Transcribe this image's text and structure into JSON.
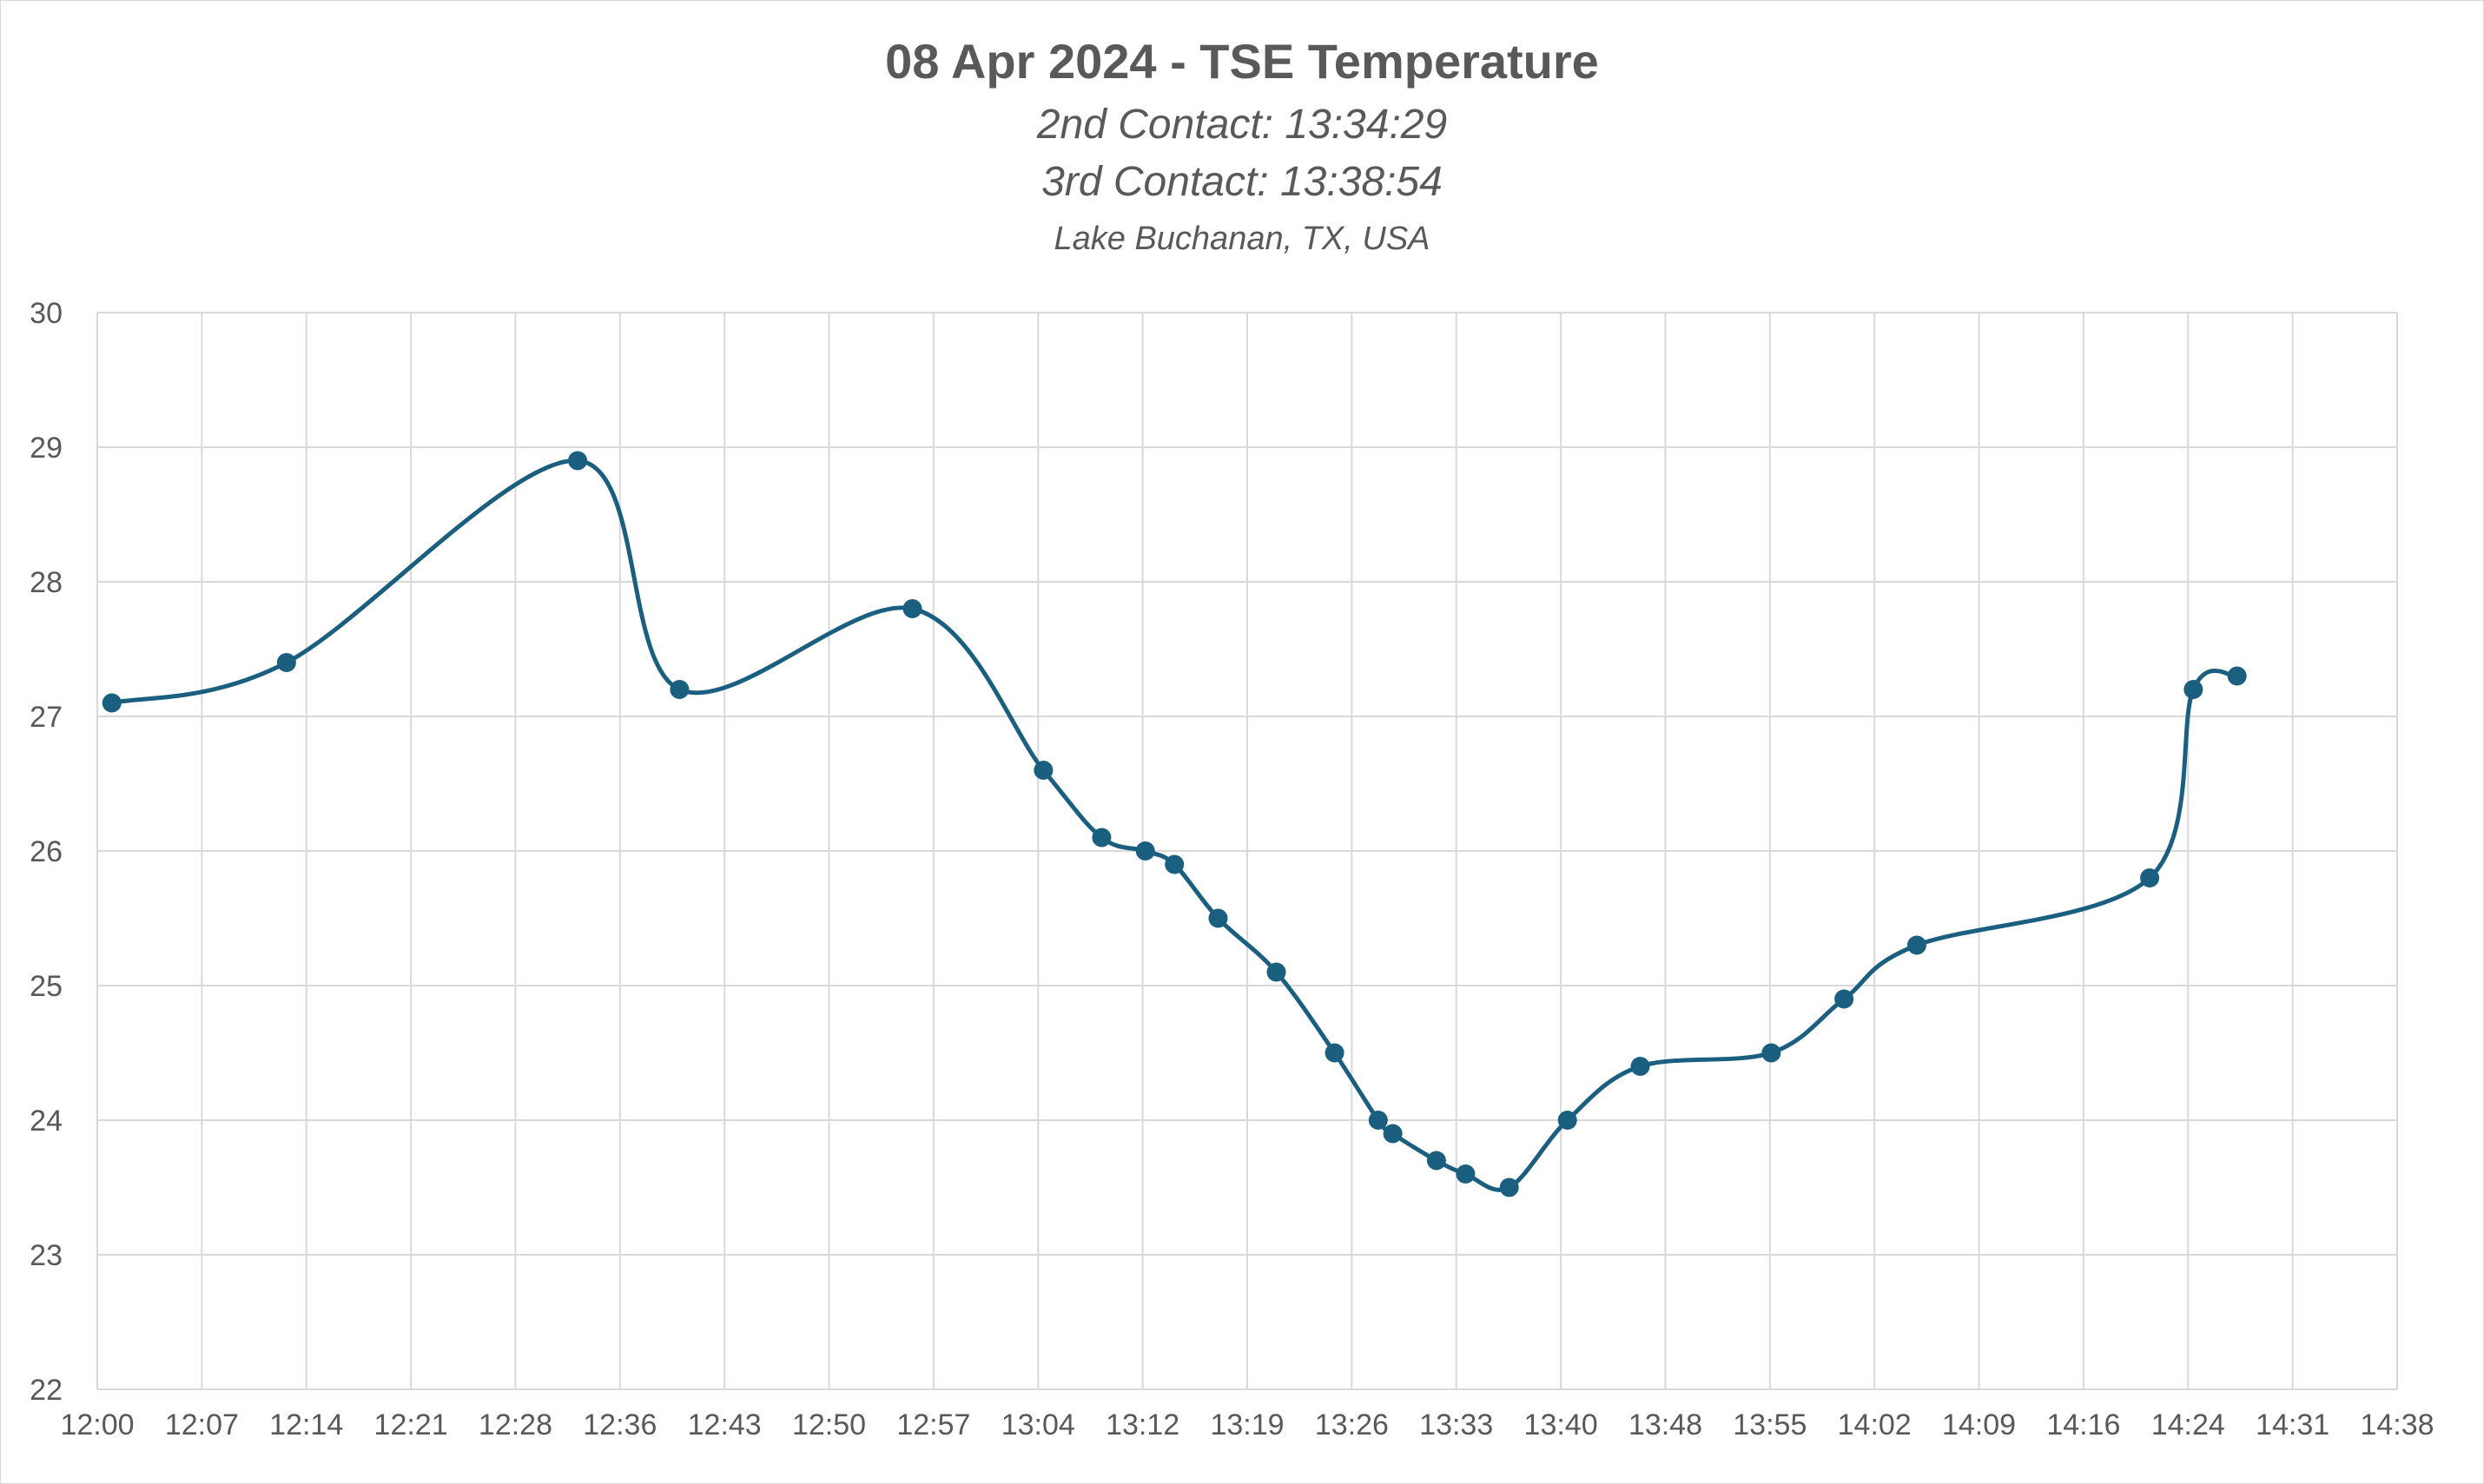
{
  "chart_data": {
    "type": "line",
    "title": "08 Apr 2024 - TSE Temperature",
    "subtitles": [
      "2nd Contact: 13:34:29",
      "3rd Contact: 13:38:54",
      "Lake Buchanan, TX, USA"
    ],
    "xlabel": "",
    "ylabel": "",
    "xlim": [
      "12:00",
      "14:38"
    ],
    "ylim": [
      22,
      30
    ],
    "x_ticks": [
      "12:00",
      "12:07",
      "12:14",
      "12:21",
      "12:28",
      "12:36",
      "12:43",
      "12:50",
      "12:57",
      "13:04",
      "13:12",
      "13:19",
      "13:26",
      "13:33",
      "13:40",
      "13:48",
      "13:55",
      "14:02",
      "14:09",
      "14:16",
      "14:24",
      "14:31",
      "14:38"
    ],
    "y_ticks": [
      22,
      23,
      24,
      25,
      26,
      27,
      28,
      29,
      30
    ],
    "grid": true,
    "legend": "none",
    "line_color": "#1a5f7f",
    "series": [
      {
        "x": [
          "12:01",
          "12:13",
          "12:33",
          "12:40",
          "12:56",
          "13:05",
          "13:09",
          "13:12",
          "13:14",
          "13:17",
          "13:21",
          "13:25",
          "13:28",
          "13:29",
          "13:32",
          "13:34",
          "13:37",
          "13:41",
          "13:46",
          "13:55",
          "14:00",
          "14:05",
          "14:21",
          "14:24",
          "14:27"
        ],
        "values": [
          27.1,
          27.4,
          28.9,
          27.2,
          27.8,
          26.6,
          26.1,
          26.0,
          25.9,
          25.5,
          25.1,
          24.5,
          24.0,
          23.9,
          23.7,
          23.6,
          23.5,
          24.0,
          24.4,
          24.5,
          24.9,
          25.3,
          25.8,
          27.2,
          27.3
        ]
      }
    ]
  }
}
